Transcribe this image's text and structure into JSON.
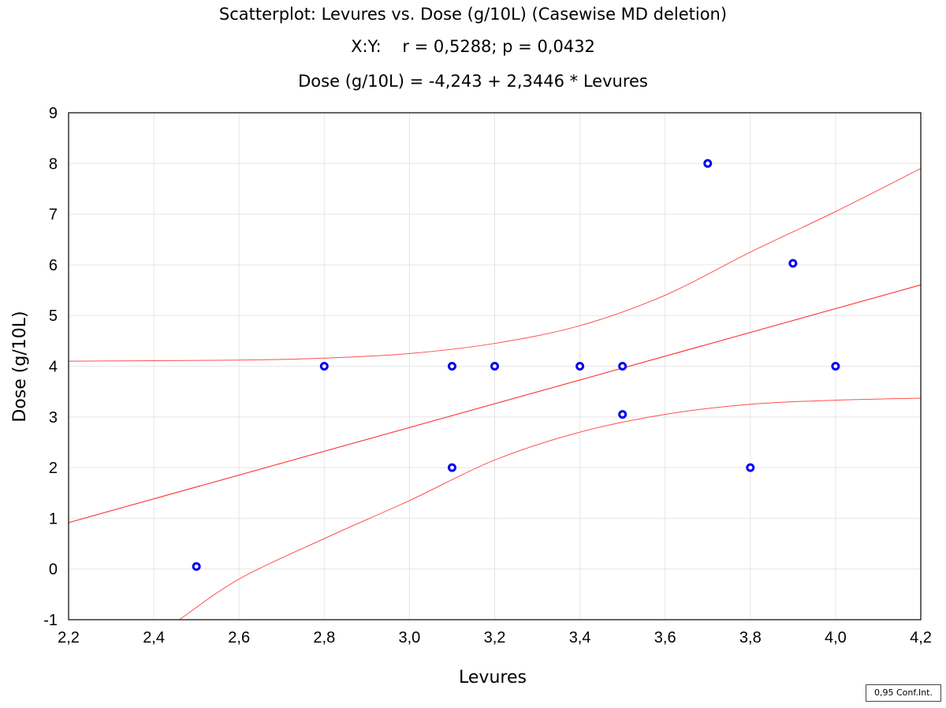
{
  "chart_data": {
    "type": "scatter",
    "title": "Scatterplot: Levures vs. Dose (g/10L) (Casewise MD deletion)",
    "subtitle": "X:Y:    r = 0,5288; p = 0,0432",
    "equation": "Dose (g/10L) = -4,243 + 2,3446 * Levures",
    "xlabel": "Levures",
    "ylabel": "Dose (g/10L)",
    "xlim": [
      2.2,
      4.2
    ],
    "ylim": [
      -1,
      9
    ],
    "xticks": [
      "2,2",
      "2,4",
      "2,6",
      "2,8",
      "3,0",
      "3,2",
      "3,4",
      "3,6",
      "3,8",
      "4,0",
      "4,2"
    ],
    "yticks": [
      "-1",
      "0",
      "1",
      "2",
      "3",
      "4",
      "5",
      "6",
      "7",
      "8",
      "9"
    ],
    "grid": true,
    "points": [
      {
        "x": 2.5,
        "y": 0.05
      },
      {
        "x": 2.8,
        "y": 4
      },
      {
        "x": 3.1,
        "y": 4
      },
      {
        "x": 3.1,
        "y": 2
      },
      {
        "x": 3.2,
        "y": 4
      },
      {
        "x": 3.4,
        "y": 4
      },
      {
        "x": 3.5,
        "y": 4
      },
      {
        "x": 3.5,
        "y": 3.05
      },
      {
        "x": 3.7,
        "y": 8
      },
      {
        "x": 3.8,
        "y": 2
      },
      {
        "x": 3.9,
        "y": 6.03
      },
      {
        "x": 4.0,
        "y": 4
      }
    ],
    "regression": {
      "intercept": -4.243,
      "slope": 2.3446
    },
    "confidence_band": {
      "level": "0,95",
      "upper": [
        [
          2.2,
          4.1
        ],
        [
          2.6,
          4.12
        ],
        [
          2.8,
          4.16
        ],
        [
          3.0,
          4.25
        ],
        [
          3.2,
          4.45
        ],
        [
          3.4,
          4.8
        ],
        [
          3.6,
          5.4
        ],
        [
          3.8,
          6.25
        ],
        [
          4.0,
          7.05
        ],
        [
          4.2,
          7.9
        ]
      ],
      "lower": [
        [
          2.46,
          -1
        ],
        [
          2.6,
          -0.2
        ],
        [
          2.8,
          0.6
        ],
        [
          3.0,
          1.35
        ],
        [
          3.2,
          2.15
        ],
        [
          3.4,
          2.7
        ],
        [
          3.6,
          3.05
        ],
        [
          3.8,
          3.25
        ],
        [
          4.0,
          3.33
        ],
        [
          4.2,
          3.37
        ]
      ]
    },
    "colors": {
      "points": "#0000ee",
      "fit": "#ff3030",
      "band": "#ff5050",
      "grid": "#e6e6e6"
    },
    "legend_text": "0,95 Conf.Int."
  }
}
